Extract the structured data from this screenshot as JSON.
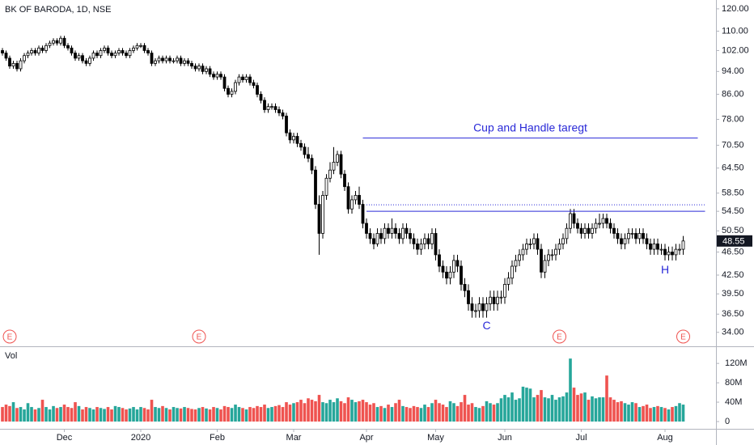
{
  "chart_data": {
    "type": "candlestick",
    "title": "BK OF BARODA, 1D, NSE",
    "log_scale": true,
    "up_color": "#ffffff",
    "down_color": "#000000",
    "border_color": "#000000",
    "xlim": [
      -0.67,
      196
    ],
    "xticks": [
      {
        "value": 17,
        "label": "Dec"
      },
      {
        "value": 38,
        "label": "2020"
      },
      {
        "value": 59,
        "label": "Feb"
      },
      {
        "value": 80,
        "label": "Mar"
      },
      {
        "value": 100,
        "label": "Apr"
      },
      {
        "value": 119,
        "label": "May"
      },
      {
        "value": 138,
        "label": "Jun"
      },
      {
        "value": 159,
        "label": "Jul"
      },
      {
        "value": 182,
        "label": "Aug"
      }
    ],
    "ylim": [
      32.2,
      124.2
    ],
    "yticks": [
      {
        "value": 120,
        "label": "120.00"
      },
      {
        "value": 110,
        "label": "110.00"
      },
      {
        "value": 102,
        "label": "102.00"
      },
      {
        "value": 94,
        "label": "94.00"
      },
      {
        "value": 86,
        "label": "86.00"
      },
      {
        "value": 78,
        "label": "78.00"
      },
      {
        "value": 70.5,
        "label": "70.50"
      },
      {
        "value": 64.5,
        "label": "64.50"
      },
      {
        "value": 58.5,
        "label": "58.50"
      },
      {
        "value": 54.5,
        "label": "54.50"
      },
      {
        "value": 50.5,
        "label": "50.50"
      },
      {
        "value": 46.5,
        "label": "46.50"
      },
      {
        "value": 42.5,
        "label": "42.50"
      },
      {
        "value": 39.5,
        "label": "39.50"
      },
      {
        "value": 36.5,
        "label": "36.50"
      },
      {
        "value": 34,
        "label": "34.00"
      }
    ],
    "open": [
      102,
      101,
      99,
      96,
      97,
      95,
      98,
      100,
      101,
      102,
      101,
      103,
      102,
      104,
      105,
      106,
      105,
      107,
      104,
      103,
      101,
      99,
      100,
      98,
      97,
      99,
      101,
      100,
      102,
      103,
      101,
      100,
      101,
      102,
      101,
      100,
      102,
      103,
      104,
      104,
      102,
      101,
      97,
      98,
      99,
      98,
      99,
      98,
      98,
      99,
      97,
      98,
      97,
      96,
      95,
      96,
      94,
      95,
      93,
      92,
      93,
      92,
      88,
      86,
      87,
      90,
      92,
      91,
      92,
      90,
      89,
      86,
      84,
      81,
      82,
      82,
      81,
      80,
      79,
      74,
      72,
      73,
      71,
      70,
      68,
      67,
      64,
      56,
      50,
      58,
      62,
      64,
      66,
      68,
      63,
      60,
      55,
      57,
      58,
      56,
      52,
      50,
      49,
      48,
      50,
      49,
      51,
      50,
      51,
      50,
      49,
      51,
      50,
      49,
      48,
      47,
      48,
      49,
      48,
      50,
      46,
      44,
      43,
      42,
      43,
      45,
      44,
      41,
      40,
      38,
      37,
      37,
      38,
      37,
      38,
      39,
      38,
      39,
      39,
      41,
      42,
      44,
      45,
      46,
      47,
      48,
      48,
      49,
      47,
      43,
      45,
      46,
      46,
      47,
      48,
      49,
      51,
      54,
      52,
      51,
      50,
      51,
      50,
      51,
      52,
      52,
      53,
      52,
      51,
      50,
      49,
      48,
      49,
      50,
      50,
      49,
      50,
      49,
      48,
      47,
      48,
      47,
      47,
      46,
      46.5,
      46,
      47,
      47
    ],
    "high": [
      103,
      102,
      100,
      98,
      98,
      99,
      101,
      102,
      103,
      103,
      104,
      104,
      105,
      106,
      107,
      107,
      108,
      108,
      105,
      104,
      102,
      101,
      101,
      99,
      100,
      102,
      102,
      103,
      104,
      104,
      102,
      102,
      103,
      103,
      102,
      103,
      104,
      105,
      105,
      105,
      103,
      102,
      99,
      100,
      100,
      100,
      100,
      99,
      100,
      100,
      99,
      99,
      98,
      97,
      97,
      97,
      96,
      96,
      94,
      94,
      94,
      93,
      89,
      88,
      91,
      93,
      93,
      93,
      93,
      91,
      90,
      87,
      85,
      83,
      83,
      83,
      82,
      81,
      80,
      75,
      74,
      74,
      72,
      71,
      70,
      68,
      65,
      58,
      59,
      63,
      66,
      70,
      69,
      69,
      64,
      61,
      58,
      59,
      60,
      57,
      53,
      51,
      50,
      51,
      51,
      52,
      52,
      53,
      52,
      51,
      52,
      52,
      51,
      50,
      49,
      49,
      50,
      50,
      51,
      51,
      47,
      45,
      44,
      44,
      46,
      46,
      45,
      42,
      41,
      39,
      38,
      39,
      39,
      39,
      40,
      40,
      40,
      40,
      42,
      43,
      45,
      46,
      47,
      48,
      49,
      49,
      50,
      50,
      48,
      46,
      47,
      47,
      48,
      49,
      50,
      52,
      55,
      55,
      53,
      52,
      52,
      52,
      52,
      53,
      54,
      54,
      54,
      53,
      52,
      51,
      50,
      50,
      51,
      51,
      51,
      51,
      51,
      50,
      49,
      49,
      49,
      48,
      48,
      47.5,
      47.5,
      48,
      48,
      49.5
    ],
    "low": [
      100,
      98,
      95,
      95,
      94,
      94,
      97,
      99,
      100,
      100,
      100,
      101,
      101,
      103,
      104,
      104,
      104,
      103,
      102,
      100,
      98,
      98,
      97,
      96,
      96,
      98,
      99,
      99,
      101,
      100,
      99,
      99,
      100,
      100,
      99,
      99,
      101,
      102,
      103,
      101,
      100,
      96,
      96,
      97,
      97,
      97,
      97,
      97,
      97,
      96,
      96,
      96,
      95,
      94,
      94,
      93,
      93,
      92,
      91,
      91,
      91,
      87,
      85,
      85,
      86,
      89,
      90,
      90,
      89,
      88,
      85,
      83,
      80,
      80,
      81,
      80,
      79,
      78,
      73,
      71,
      71,
      70,
      69,
      67,
      66,
      63,
      55,
      46,
      49,
      57,
      61,
      63,
      65,
      62,
      59,
      54,
      54,
      56,
      55,
      51,
      49,
      48,
      47,
      47.5,
      48,
      48,
      49,
      49,
      49,
      48,
      48,
      49,
      48,
      47,
      46,
      46,
      47,
      47,
      47,
      45,
      43,
      42,
      41,
      41,
      42,
      43,
      40,
      39,
      37,
      36,
      36,
      36,
      36,
      36,
      37,
      37,
      37,
      38,
      38,
      40,
      41,
      43,
      44,
      45,
      46,
      47,
      47,
      46,
      42,
      42,
      44,
      45,
      45,
      46,
      47,
      48,
      50,
      51,
      50,
      49,
      49,
      49,
      49,
      50,
      51,
      51,
      51,
      50,
      49,
      48,
      47,
      47,
      48,
      49,
      48,
      48,
      48,
      47,
      46,
      46,
      46,
      46,
      45,
      45,
      45,
      45,
      46,
      46
    ],
    "close": [
      101,
      99,
      96,
      97,
      95,
      98,
      100,
      101,
      102,
      101,
      103,
      102,
      104,
      105,
      106,
      105,
      107,
      104,
      103,
      101,
      99,
      100,
      98,
      97,
      99,
      101,
      100,
      102,
      103,
      101,
      100,
      101,
      102,
      101,
      100,
      102,
      103,
      104,
      104,
      102,
      101,
      97,
      98,
      99,
      98,
      99,
      98,
      98,
      99,
      97,
      98,
      97,
      96,
      95,
      96,
      94,
      95,
      93,
      92,
      93,
      92,
      88,
      86,
      87,
      90,
      92,
      91,
      92,
      90,
      89,
      86,
      84,
      81,
      82,
      82,
      81,
      80,
      79,
      74,
      72,
      73,
      71,
      70,
      68,
      67,
      64,
      56,
      50,
      58,
      62,
      64,
      66,
      68,
      63,
      60,
      55,
      57,
      58,
      56,
      52,
      50,
      49,
      48,
      50,
      49,
      51,
      50,
      51,
      50,
      49,
      51,
      50,
      49,
      48,
      47,
      48,
      49,
      48,
      50,
      46,
      44,
      43,
      42,
      43,
      45,
      44,
      41,
      40,
      38,
      37,
      37,
      38,
      37,
      38,
      39,
      38,
      39,
      39,
      41,
      42,
      44,
      45,
      46,
      47,
      48,
      48,
      49,
      47,
      43,
      45,
      46,
      46,
      47,
      48,
      49,
      51,
      54,
      52,
      51,
      50,
      51,
      50,
      51,
      52,
      52,
      53,
      52,
      51,
      50,
      49,
      48,
      49,
      50,
      50,
      49,
      50,
      49,
      48,
      47,
      48,
      47,
      47,
      46,
      46.5,
      46,
      47,
      47,
      48.55
    ],
    "volume": {
      "label": "Vol",
      "up_color": "#26a69a",
      "down_color": "#ef5350",
      "ylim": [
        -15000000,
        152000000
      ],
      "yticks": [
        0,
        {
          "value": 40000000,
          "label": "40M"
        },
        {
          "value": 80000000,
          "label": "80M"
        },
        {
          "value": 120000000,
          "label": "120M"
        }
      ],
      "values": [
        30000000,
        35000000,
        32000000,
        40000000,
        28000000,
        30000000,
        25000000,
        38000000,
        30000000,
        25000000,
        28000000,
        45000000,
        30000000,
        25000000,
        32000000,
        28000000,
        30000000,
        35000000,
        30000000,
        28000000,
        40000000,
        32000000,
        25000000,
        30000000,
        28000000,
        25000000,
        30000000,
        28000000,
        26000000,
        30000000,
        25000000,
        32000000,
        30000000,
        28000000,
        25000000,
        27000000,
        30000000,
        25000000,
        30000000,
        28000000,
        25000000,
        45000000,
        30000000,
        28000000,
        32000000,
        28000000,
        25000000,
        30000000,
        28000000,
        27000000,
        30000000,
        28000000,
        26000000,
        25000000,
        28000000,
        30000000,
        27000000,
        25000000,
        30000000,
        28000000,
        25000000,
        32000000,
        30000000,
        28000000,
        35000000,
        30000000,
        28000000,
        25000000,
        30000000,
        28000000,
        32000000,
        30000000,
        35000000,
        28000000,
        30000000,
        32000000,
        34000000,
        30000000,
        40000000,
        35000000,
        38000000,
        40000000,
        45000000,
        38000000,
        48000000,
        45000000,
        42000000,
        55000000,
        40000000,
        38000000,
        45000000,
        40000000,
        48000000,
        42000000,
        38000000,
        50000000,
        45000000,
        40000000,
        42000000,
        45000000,
        40000000,
        35000000,
        38000000,
        30000000,
        32000000,
        28000000,
        35000000,
        30000000,
        38000000,
        45000000,
        32000000,
        30000000,
        28000000,
        32000000,
        30000000,
        28000000,
        35000000,
        30000000,
        38000000,
        45000000,
        38000000,
        35000000,
        30000000,
        42000000,
        38000000,
        32000000,
        40000000,
        55000000,
        35000000,
        38000000,
        30000000,
        28000000,
        32000000,
        42000000,
        38000000,
        35000000,
        38000000,
        48000000,
        55000000,
        50000000,
        60000000,
        45000000,
        48000000,
        72000000,
        70000000,
        68000000,
        50000000,
        55000000,
        65000000,
        50000000,
        48000000,
        55000000,
        45000000,
        50000000,
        52000000,
        60000000,
        130000000,
        70000000,
        55000000,
        58000000,
        60000000,
        45000000,
        52000000,
        48000000,
        50000000,
        50000000,
        95000000,
        50000000,
        45000000,
        40000000,
        42000000,
        38000000,
        35000000,
        40000000,
        38000000,
        30000000,
        32000000,
        35000000,
        28000000,
        30000000,
        32000000,
        30000000,
        28000000,
        25000000,
        30000000,
        32000000,
        38000000,
        35000000
      ]
    },
    "hlines": [
      {
        "label": "Cup and Handle taregt",
        "value": 72.5,
        "x": [
          99,
          191
        ],
        "color": "#2a2ad8",
        "style": "solid"
      },
      {
        "value": 54.5,
        "x": [
          100,
          193
        ],
        "color": "#2a2ad8",
        "style": "solid"
      },
      {
        "value": 55.9,
        "x": [
          100,
          193
        ],
        "color": "#2a2ad8",
        "style": "dotted"
      }
    ],
    "annotations": [
      {
        "text": "C",
        "x": 133,
        "y": 34.8,
        "color": "#2a2ad8"
      },
      {
        "text": "H",
        "x": 182,
        "y": 43.3,
        "color": "#2a2ad8"
      }
    ],
    "earnings": {
      "label": "E",
      "x": [
        2,
        54,
        153,
        187
      ],
      "color": "#ef5350"
    }
  }
}
